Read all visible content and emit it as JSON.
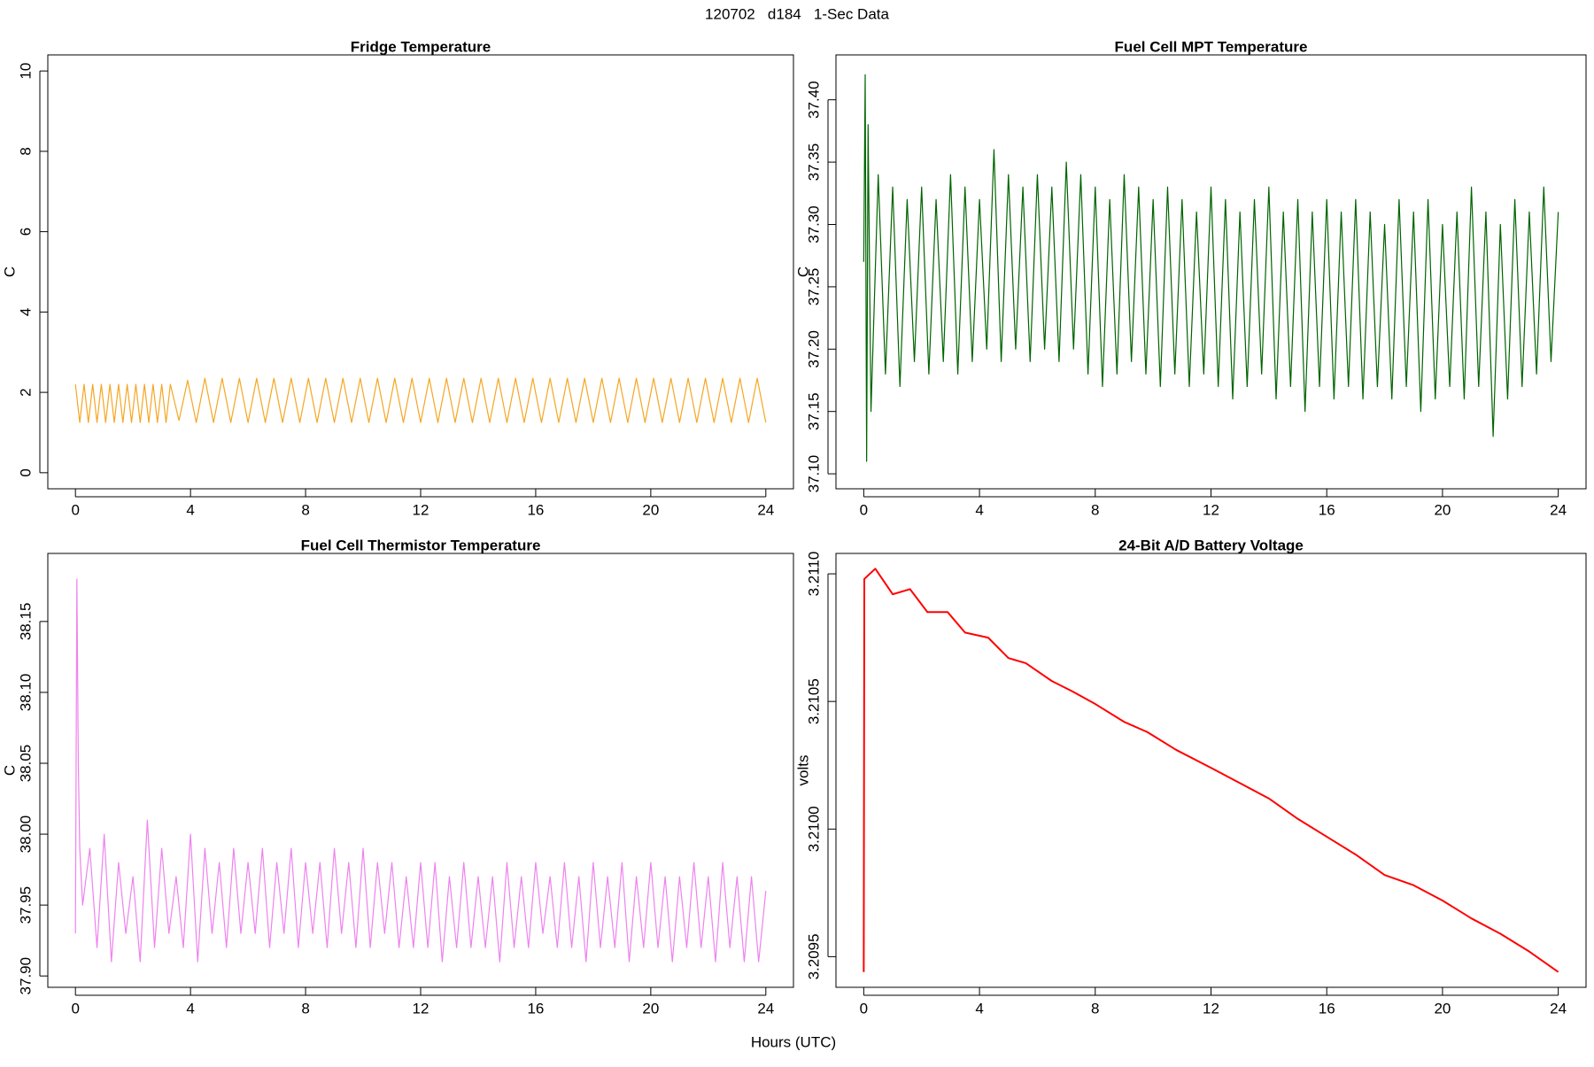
{
  "title": "120702   d184   1-Sec Data",
  "xlabel": "Hours (UTC)",
  "chart_data": [
    {
      "type": "line",
      "title": "Fridge Temperature",
      "ylabel": "C",
      "color": "#f5a623",
      "xlim": [
        -0.96,
        24.96
      ],
      "ylim": [
        -0.4,
        10.4
      ],
      "xticks": [
        0,
        4,
        8,
        12,
        16,
        20,
        24
      ],
      "yticks": [
        0,
        2,
        4,
        6,
        8,
        10
      ],
      "x": [
        0,
        0.15,
        0.3,
        0.45,
        0.6,
        0.75,
        0.9,
        1.05,
        1.2,
        1.35,
        1.5,
        1.65,
        1.8,
        1.95,
        2.1,
        2.25,
        2.4,
        2.55,
        2.7,
        2.85,
        3,
        3.15,
        3.3,
        3.6,
        3.9,
        4.2,
        4.5,
        4.8,
        5.1,
        5.4,
        5.7,
        6,
        6.3,
        6.6,
        6.9,
        7.2,
        7.5,
        7.8,
        8.1,
        8.4,
        8.7,
        9,
        9.3,
        9.6,
        9.9,
        10.2,
        10.5,
        10.8,
        11.1,
        11.4,
        11.7,
        12,
        12.3,
        12.6,
        12.9,
        13.2,
        13.5,
        13.8,
        14.1,
        14.4,
        14.7,
        15,
        15.3,
        15.6,
        15.9,
        16.2,
        16.5,
        16.8,
        17.1,
        17.4,
        17.7,
        18,
        18.3,
        18.6,
        18.9,
        19.2,
        19.5,
        19.8,
        20.1,
        20.4,
        20.7,
        21,
        21.3,
        21.6,
        21.9,
        22.2,
        22.5,
        22.8,
        23.1,
        23.4,
        23.7,
        24
      ],
      "values": [
        2.2,
        1.25,
        2.2,
        1.25,
        2.2,
        1.25,
        2.2,
        1.25,
        2.2,
        1.25,
        2.2,
        1.25,
        2.2,
        1.25,
        2.2,
        1.25,
        2.2,
        1.25,
        2.2,
        1.25,
        2.2,
        1.25,
        2.2,
        1.3,
        2.3,
        1.25,
        2.35,
        1.25,
        2.35,
        1.25,
        2.35,
        1.25,
        2.35,
        1.25,
        2.35,
        1.25,
        2.35,
        1.25,
        2.35,
        1.25,
        2.35,
        1.25,
        2.35,
        1.25,
        2.35,
        1.25,
        2.35,
        1.25,
        2.35,
        1.25,
        2.35,
        1.25,
        2.35,
        1.25,
        2.35,
        1.25,
        2.35,
        1.25,
        2.35,
        1.25,
        2.35,
        1.25,
        2.35,
        1.25,
        2.35,
        1.25,
        2.35,
        1.25,
        2.35,
        1.25,
        2.35,
        1.25,
        2.35,
        1.25,
        2.35,
        1.25,
        2.35,
        1.25,
        2.35,
        1.25,
        2.35,
        1.25,
        2.35,
        1.25,
        2.35,
        1.25,
        2.35,
        1.25,
        2.35,
        1.25,
        2.35,
        1.25
      ]
    },
    {
      "type": "line",
      "title": "Fuel Cell MPT Temperature",
      "ylabel": "C",
      "color": "#006400",
      "xlim": [
        -0.96,
        24.96
      ],
      "ylim": [
        37.088,
        37.436
      ],
      "xticks": [
        0,
        4,
        8,
        12,
        16,
        20,
        24
      ],
      "yticks": [
        {
          "value": 37.1,
          "label": "37.10"
        },
        37.15,
        {
          "value": 37.2,
          "label": "37.20"
        },
        37.25,
        {
          "value": 37.3,
          "label": "37.30"
        },
        37.35,
        {
          "value": 37.4,
          "label": "37.40"
        }
      ],
      "x": [
        0,
        0.05,
        0.1,
        0.15,
        0.25,
        0.5,
        0.75,
        1,
        1.25,
        1.5,
        1.75,
        2,
        2.25,
        2.5,
        2.75,
        3,
        3.25,
        3.5,
        3.75,
        4,
        4.25,
        4.5,
        4.75,
        5,
        5.25,
        5.5,
        5.75,
        6,
        6.25,
        6.5,
        6.75,
        7,
        7.25,
        7.5,
        7.75,
        8,
        8.25,
        8.5,
        8.75,
        9,
        9.25,
        9.5,
        9.75,
        10,
        10.25,
        10.5,
        10.75,
        11,
        11.25,
        11.5,
        11.75,
        12,
        12.25,
        12.5,
        12.75,
        13,
        13.25,
        13.5,
        13.75,
        14,
        14.25,
        14.5,
        14.75,
        15,
        15.25,
        15.5,
        15.75,
        16,
        16.25,
        16.5,
        16.75,
        17,
        17.25,
        17.5,
        17.75,
        18,
        18.25,
        18.5,
        18.75,
        19,
        19.25,
        19.5,
        19.75,
        20,
        20.25,
        20.5,
        20.75,
        21,
        21.25,
        21.5,
        21.75,
        22,
        22.25,
        22.5,
        22.75,
        23,
        23.25,
        23.5,
        23.75,
        24
      ],
      "values": [
        37.27,
        37.42,
        37.11,
        37.38,
        37.15,
        37.34,
        37.18,
        37.33,
        37.17,
        37.32,
        37.19,
        37.33,
        37.18,
        37.32,
        37.19,
        37.34,
        37.18,
        37.33,
        37.19,
        37.32,
        37.2,
        37.36,
        37.19,
        37.34,
        37.2,
        37.33,
        37.19,
        37.34,
        37.2,
        37.33,
        37.19,
        37.35,
        37.2,
        37.34,
        37.18,
        37.33,
        37.17,
        37.32,
        37.18,
        37.34,
        37.19,
        37.33,
        37.18,
        37.32,
        37.17,
        37.33,
        37.18,
        37.32,
        37.17,
        37.31,
        37.18,
        37.33,
        37.17,
        37.32,
        37.16,
        37.31,
        37.17,
        37.32,
        37.18,
        37.33,
        37.16,
        37.31,
        37.17,
        37.32,
        37.15,
        37.31,
        37.17,
        37.32,
        37.16,
        37.31,
        37.17,
        37.32,
        37.16,
        37.31,
        37.17,
        37.3,
        37.16,
        37.32,
        37.17,
        37.31,
        37.15,
        37.32,
        37.16,
        37.3,
        37.17,
        37.31,
        37.16,
        37.33,
        37.17,
        37.31,
        37.13,
        37.3,
        37.16,
        37.32,
        37.17,
        37.31,
        37.18,
        37.33,
        37.19,
        37.31
      ]
    },
    {
      "type": "line",
      "title": "Fuel Cell Thermistor Temperature",
      "ylabel": "C",
      "color": "#ee82ee",
      "xlim": [
        -0.96,
        24.96
      ],
      "ylim": [
        37.892,
        38.198
      ],
      "xticks": [
        0,
        4,
        8,
        12,
        16,
        20,
        24
      ],
      "yticks": [
        {
          "value": 37.9,
          "label": "37.90"
        },
        37.95,
        {
          "value": 38,
          "label": "38.00"
        },
        38.05,
        {
          "value": 38.1,
          "label": "38.10"
        },
        38.15
      ],
      "x": [
        0,
        0.05,
        0.1,
        0.15,
        0.25,
        0.5,
        0.75,
        1,
        1.25,
        1.5,
        1.75,
        2,
        2.25,
        2.5,
        2.75,
        3,
        3.25,
        3.5,
        3.75,
        4,
        4.25,
        4.5,
        4.75,
        5,
        5.25,
        5.5,
        5.75,
        6,
        6.25,
        6.5,
        6.75,
        7,
        7.25,
        7.5,
        7.75,
        8,
        8.25,
        8.5,
        8.75,
        9,
        9.25,
        9.5,
        9.75,
        10,
        10.25,
        10.5,
        10.75,
        11,
        11.25,
        11.5,
        11.75,
        12,
        12.25,
        12.5,
        12.75,
        13,
        13.25,
        13.5,
        13.75,
        14,
        14.25,
        14.5,
        14.75,
        15,
        15.25,
        15.5,
        15.75,
        16,
        16.25,
        16.5,
        16.75,
        17,
        17.25,
        17.5,
        17.75,
        18,
        18.25,
        18.5,
        18.75,
        19,
        19.25,
        19.5,
        19.75,
        20,
        20.25,
        20.5,
        20.75,
        21,
        21.25,
        21.5,
        21.75,
        22,
        22.25,
        22.5,
        22.75,
        23,
        23.25,
        23.5,
        23.75,
        24
      ],
      "values": [
        37.93,
        38.18,
        38.05,
        37.99,
        37.95,
        37.99,
        37.92,
        38,
        37.91,
        37.98,
        37.93,
        37.97,
        37.91,
        38.01,
        37.92,
        37.99,
        37.93,
        37.97,
        37.92,
        38,
        37.91,
        37.99,
        37.93,
        37.98,
        37.92,
        37.99,
        37.93,
        37.98,
        37.93,
        37.99,
        37.92,
        37.98,
        37.93,
        37.99,
        37.92,
        37.98,
        37.93,
        37.98,
        37.92,
        37.99,
        37.93,
        37.98,
        37.92,
        37.99,
        37.92,
        37.98,
        37.93,
        37.98,
        37.92,
        37.97,
        37.92,
        37.98,
        37.92,
        37.98,
        37.91,
        37.97,
        37.92,
        37.98,
        37.92,
        37.97,
        37.92,
        37.97,
        37.91,
        37.98,
        37.92,
        37.97,
        37.92,
        37.98,
        37.93,
        37.97,
        37.92,
        37.98,
        37.92,
        37.97,
        37.91,
        37.98,
        37.92,
        37.97,
        37.92,
        37.98,
        37.91,
        37.97,
        37.92,
        37.98,
        37.92,
        37.97,
        37.91,
        37.97,
        37.92,
        37.98,
        37.92,
        37.97,
        37.91,
        37.98,
        37.92,
        37.97,
        37.91,
        37.97,
        37.91,
        37.96
      ]
    },
    {
      "type": "line",
      "title": "24-Bit A/D Battery Voltage",
      "ylabel": "volts",
      "color": "#ff0000",
      "xlim": [
        -0.96,
        24.96
      ],
      "ylim": [
        3.20938,
        3.21108
      ],
      "xticks": [
        0,
        4,
        8,
        12,
        16,
        20,
        24
      ],
      "yticks": [
        3.2095,
        {
          "value": 3.21,
          "label": "3.2100"
        },
        3.2105,
        {
          "value": 3.211,
          "label": "3.2110"
        }
      ],
      "x": [
        0,
        0.02,
        0.4,
        1,
        1.6,
        2.2,
        2.9,
        3.5,
        4.3,
        5,
        5.6,
        6.5,
        7.2,
        8,
        9,
        9.8,
        10.8,
        12,
        13,
        14,
        15,
        16,
        17,
        18,
        19,
        20,
        21,
        22,
        23,
        24
      ],
      "values": [
        3.20944,
        3.21098,
        3.21102,
        3.21092,
        3.21094,
        3.21085,
        3.21085,
        3.21077,
        3.21075,
        3.21067,
        3.21065,
        3.21058,
        3.21054,
        3.21049,
        3.21042,
        3.21038,
        3.21031,
        3.21024,
        3.21018,
        3.21012,
        3.21004,
        3.20997,
        3.2099,
        3.20982,
        3.20978,
        3.20972,
        3.20965,
        3.20959,
        3.20952,
        3.20944
      ]
    }
  ]
}
